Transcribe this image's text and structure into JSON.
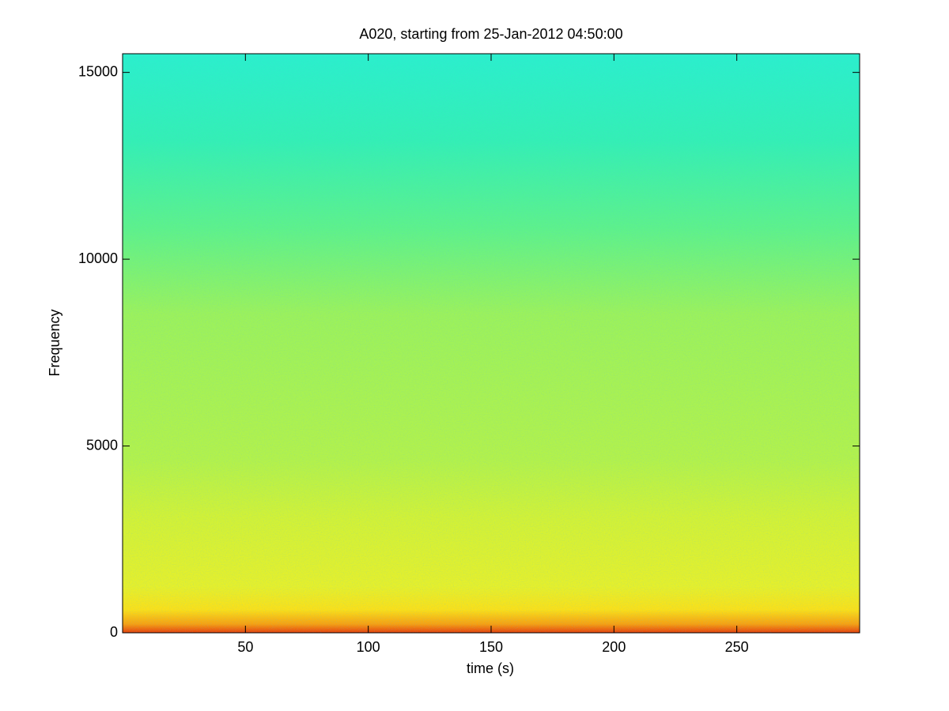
{
  "chart_data": {
    "type": "spectrogram",
    "title": "A020, starting from 25-Jan-2012 04:50:00",
    "x_label": "time (s)",
    "y_label": "Frequency",
    "xlim": [
      0,
      300
    ],
    "xticks": [
      50,
      100,
      150,
      200,
      250
    ],
    "ylim": [
      0,
      15500
    ],
    "yticks": [
      0,
      5000,
      10000,
      15000
    ]
  }
}
